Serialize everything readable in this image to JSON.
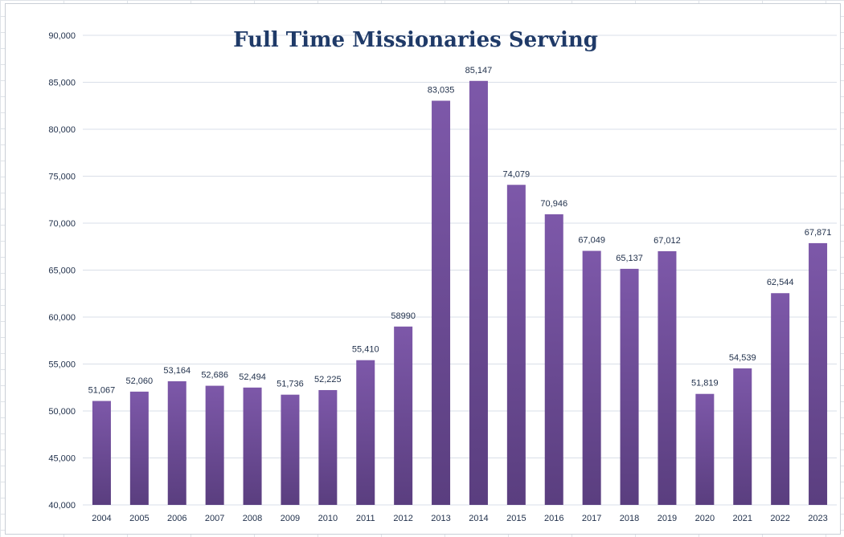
{
  "chart_data": {
    "type": "bar",
    "title": "Full Time Missionaries Serving",
    "xlabel": "",
    "ylabel": "",
    "categories": [
      "2004",
      "2005",
      "2006",
      "2007",
      "2008",
      "2009",
      "2010",
      "2011",
      "2012",
      "2013",
      "2014",
      "2015",
      "2016",
      "2017",
      "2018",
      "2019",
      "2020",
      "2021",
      "2022",
      "2023"
    ],
    "values": [
      51067,
      52060,
      53164,
      52686,
      52494,
      51736,
      52225,
      55410,
      58990,
      83035,
      85147,
      74079,
      70946,
      67049,
      65137,
      67012,
      51819,
      54539,
      62544,
      67871
    ],
    "data_labels": [
      "51,067",
      "52,060",
      "53,164",
      "52,686",
      "52,494",
      "51,736",
      "52,225",
      "55,410",
      "58990",
      "83,035",
      "85,147",
      "74,079",
      "70,946",
      "67,049",
      "65,137",
      "67,012",
      "51,819",
      "54,539",
      "62,544",
      "67,871"
    ],
    "ylim": [
      40000,
      90000
    ],
    "yticks": [
      "40,000",
      "45,000",
      "50,000",
      "55,000",
      "60,000",
      "65,000",
      "70,000",
      "75,000",
      "80,000",
      "85,000",
      "90,000"
    ],
    "ytick_values": [
      40000,
      45000,
      50000,
      55000,
      60000,
      65000,
      70000,
      75000,
      80000,
      85000,
      90000
    ],
    "grid": true,
    "legend": "none",
    "colors": {
      "bar_top": "#7d58a9",
      "bar_bottom": "#5a3e7f",
      "grid": "#d9dfe8",
      "title": "#1f3a68"
    }
  }
}
